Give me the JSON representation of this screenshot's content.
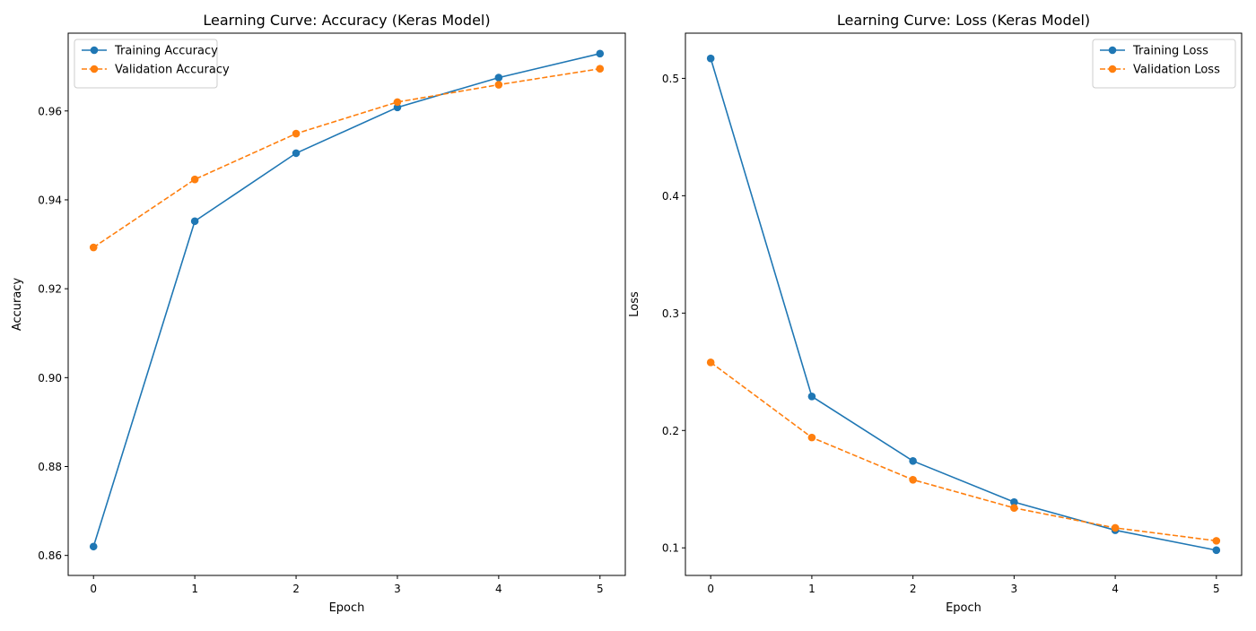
{
  "chart_data": [
    {
      "type": "line",
      "title": "Learning Curve: Accuracy (Keras Model)",
      "xlabel": "Epoch",
      "ylabel": "Accuracy",
      "x": [
        0,
        1,
        2,
        3,
        4,
        5
      ],
      "xlim": [
        -0.25,
        5.25
      ],
      "ylim": [
        0.8555,
        0.9775
      ],
      "xticks": [
        0,
        1,
        2,
        3,
        4,
        5
      ],
      "yticks": [
        0.86,
        0.88,
        0.9,
        0.92,
        0.94,
        0.96
      ],
      "ytick_labels": [
        "0.86",
        "0.88",
        "0.90",
        "0.92",
        "0.94",
        "0.96"
      ],
      "xtick_labels": [
        "0",
        "1",
        "2",
        "3",
        "4",
        "5"
      ],
      "grid": false,
      "legend_position": "top-left",
      "series": [
        {
          "name": "Training Accuracy",
          "values": [
            0.862,
            0.9352,
            0.9505,
            0.9608,
            0.9675,
            0.9729
          ],
          "color": "#1f77b4",
          "style": "solid"
        },
        {
          "name": "Validation Accuracy",
          "values": [
            0.9293,
            0.9446,
            0.9549,
            0.962,
            0.9659,
            0.9695
          ],
          "color": "#ff7f0e",
          "style": "dashed"
        }
      ]
    },
    {
      "type": "line",
      "title": "Learning Curve: Loss (Keras Model)",
      "xlabel": "Epoch",
      "ylabel": "Loss",
      "x": [
        0,
        1,
        2,
        3,
        4,
        5
      ],
      "xlim": [
        -0.25,
        5.25
      ],
      "ylim": [
        0.0765,
        0.5385
      ],
      "xticks": [
        0,
        1,
        2,
        3,
        4,
        5
      ],
      "yticks": [
        0.1,
        0.2,
        0.3,
        0.4,
        0.5
      ],
      "ytick_labels": [
        "0.1",
        "0.2",
        "0.3",
        "0.4",
        "0.5"
      ],
      "xtick_labels": [
        "0",
        "1",
        "2",
        "3",
        "4",
        "5"
      ],
      "grid": false,
      "legend_position": "top-right",
      "series": [
        {
          "name": "Training Loss",
          "values": [
            0.517,
            0.229,
            0.174,
            0.139,
            0.115,
            0.098
          ],
          "color": "#1f77b4",
          "style": "solid"
        },
        {
          "name": "Validation Loss",
          "values": [
            0.258,
            0.194,
            0.158,
            0.134,
            0.117,
            0.106
          ],
          "color": "#ff7f0e",
          "style": "dashed"
        }
      ]
    }
  ]
}
